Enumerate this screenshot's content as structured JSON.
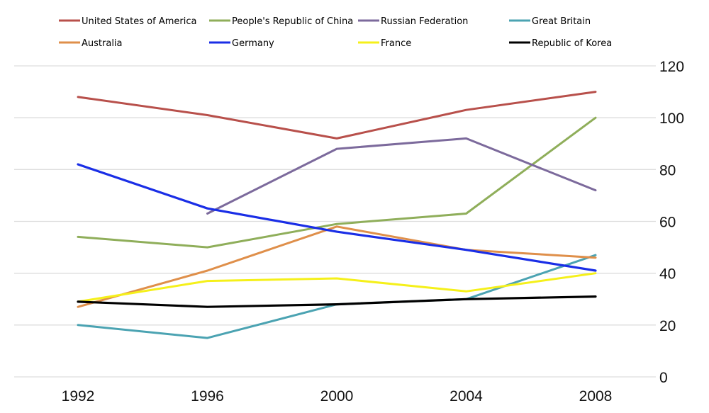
{
  "chart_data": {
    "type": "line",
    "title": "",
    "xlabel": "",
    "ylabel": "",
    "x": [
      "1992",
      "1996",
      "2000",
      "2004",
      "2008"
    ],
    "ylim": [
      0,
      120
    ],
    "yticks": [
      "0",
      "20",
      "40",
      "60",
      "80",
      "100",
      "120"
    ],
    "y_axis_side": "right",
    "grid": true,
    "legend_position": "top",
    "series": [
      {
        "name": "United States of America",
        "color": "#b8504b",
        "values": [
          108,
          101,
          92,
          103,
          110
        ]
      },
      {
        "name": "People's Republic of China",
        "color": "#8fae5a",
        "values": [
          54,
          50,
          59,
          63,
          100
        ]
      },
      {
        "name": "Russian Federation",
        "color": "#7c6a9c",
        "values": [
          null,
          63,
          88,
          92,
          72
        ]
      },
      {
        "name": "Great Britain",
        "color": "#4ba3b2",
        "values": [
          20,
          15,
          28,
          30,
          47
        ]
      },
      {
        "name": "Australia",
        "color": "#df8f4a",
        "values": [
          27,
          41,
          58,
          49,
          46
        ]
      },
      {
        "name": "Germany",
        "color": "#1a2ee6",
        "values": [
          82,
          65,
          56,
          49,
          41
        ]
      },
      {
        "name": "France",
        "color": "#f5f01a",
        "values": [
          29,
          37,
          38,
          33,
          40
        ]
      },
      {
        "name": "Republic of Korea",
        "color": "#000000",
        "values": [
          29,
          27,
          28,
          30,
          31
        ]
      }
    ]
  }
}
